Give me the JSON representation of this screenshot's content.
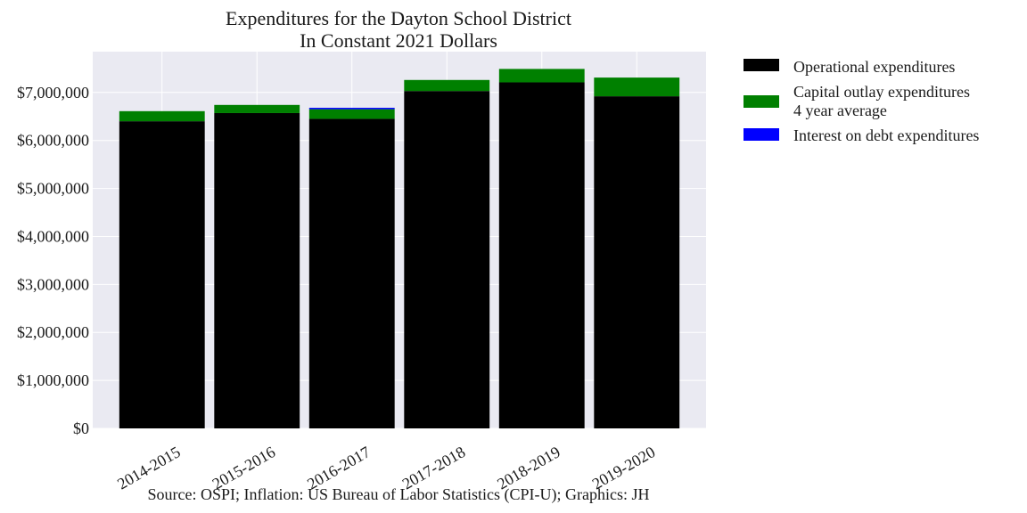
{
  "chart_data": {
    "type": "bar",
    "stacked": true,
    "title": [
      "Expenditures for the Dayton School District",
      "In Constant 2021 Dollars"
    ],
    "xlabel": "",
    "ylabel": "",
    "categories": [
      "2014-2015",
      "2015-2016",
      "2016-2017",
      "2017-2018",
      "2018-2019",
      "2019-2020"
    ],
    "series": [
      {
        "name": "Operational expenditures",
        "color": "#000000",
        "values": [
          6400000,
          6570000,
          6450000,
          7030000,
          7210000,
          6920000
        ]
      },
      {
        "name": "Capital outlay expenditures\n4 year average",
        "color": "#008000",
        "values": [
          210000,
          170000,
          200000,
          230000,
          280000,
          390000
        ]
      },
      {
        "name": "Interest on debt expenditures",
        "color": "#0000ff",
        "values": [
          0,
          0,
          30000,
          0,
          0,
          0
        ]
      }
    ],
    "yticks": [
      0,
      1000000,
      2000000,
      3000000,
      4000000,
      5000000,
      6000000,
      7000000
    ],
    "ytick_labels": [
      "$0",
      "$1,000,000",
      "$2,000,000",
      "$3,000,000",
      "$4,000,000",
      "$5,000,000",
      "$6,000,000",
      "$7,000,000"
    ],
    "ylim": [
      0,
      7850000
    ],
    "grid": true,
    "legend_position": "outside-right",
    "background_color": "#eaeaf2",
    "source": "Source: OSPI; Inflation: US Bureau of Labor Statistics (CPI-U); Graphics: JH"
  }
}
